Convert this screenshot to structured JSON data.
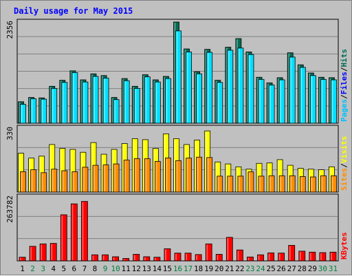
{
  "chart_data": {
    "title": "Daily usage for May 2015",
    "type": "bar",
    "days": [
      "1",
      "2",
      "3",
      "4",
      "5",
      "6",
      "7",
      "8",
      "9",
      "10",
      "11",
      "12",
      "13",
      "14",
      "15",
      "16",
      "17",
      "18",
      "19",
      "20",
      "21",
      "22",
      "23",
      "24",
      "25",
      "26",
      "27",
      "28",
      "29",
      "30",
      "31"
    ],
    "weekend_days": [
      "2",
      "3",
      "9",
      "10",
      "16",
      "17",
      "23",
      "24",
      "30",
      "31"
    ],
    "colors": {
      "hits": "#006b54",
      "files": "#00e0ff",
      "pages": "#00c0ff",
      "visits": "#ffff00",
      "sites": "#ff8c00",
      "kbytes": "#ff0000",
      "weekday_label": "#000000",
      "weekend_label": "#008040",
      "title": "#0000ff"
    },
    "panels": [
      {
        "id": "hits-files-pages",
        "ymax_label": "2356",
        "ymax": 2356,
        "legend": [
          {
            "text": "Hits",
            "color": "#006b54"
          },
          {
            "text": "Files",
            "color": "#0000ff"
          },
          {
            "text": "Pages",
            "color": "#00c0ff"
          }
        ],
        "series": [
          {
            "name": "Hits",
            "color": "#006b54",
            "values": [
              500,
              600,
              590,
              860,
              1000,
              1220,
              1010,
              1150,
              1110,
              600,
              1040,
              860,
              1130,
              1010,
              1090,
              2356,
              1730,
              1200,
              1720,
              1000,
              1770,
              1970,
              1660,
              1070,
              940,
              1060,
              1640,
              1360,
              1170,
              1070,
              1060
            ]
          },
          {
            "name": "Files",
            "color": "#00e0ff",
            "values": [
              440,
              570,
              560,
              810,
              950,
              1180,
              960,
              1090,
              1050,
              550,
              990,
              810,
              1080,
              960,
              1040,
              2150,
              1660,
              1150,
              1650,
              950,
              1700,
              1750,
              1600,
              1020,
              890,
              1010,
              1540,
              1300,
              1110,
              1020,
              1010
            ]
          }
        ]
      },
      {
        "id": "visits-sites",
        "ymax_label": "330",
        "ymax": 330,
        "legend": [
          {
            "text": "Visits",
            "color": "#ffff00"
          },
          {
            "text": "Sites",
            "color": "#ff8c00"
          }
        ],
        "series": [
          {
            "name": "Visits",
            "color": "#ffff00",
            "values": [
              200,
              175,
              185,
              245,
              225,
              220,
              205,
              255,
              195,
              220,
              250,
              275,
              270,
              225,
              300,
              275,
              245,
              268,
              315,
              155,
              145,
              130,
              118,
              148,
              150,
              167,
              138,
              122,
              118,
              115,
              130
            ]
          },
          {
            "name": "Sites",
            "color": "#ff8c00",
            "values": [
              105,
              115,
              100,
              118,
              110,
              105,
              128,
              138,
              140,
              145,
              165,
              172,
              172,
              158,
              176,
              162,
              175,
              180,
              178,
              82,
              82,
              82,
              104,
              82,
              84,
              84,
              84,
              80,
              78,
              84,
              84
            ]
          }
        ]
      },
      {
        "id": "kbytes",
        "ymax_label": "263782",
        "ymax": 263782,
        "legend": [
          {
            "text": "KBytes",
            "color": "#ff0000"
          }
        ],
        "series": [
          {
            "name": "KBytes",
            "color": "#ff0000",
            "values": [
              15000,
              60000,
              70000,
              72000,
              190000,
              235000,
              245000,
              25000,
              25000,
              17000,
              10000,
              27000,
              17000,
              15000,
              50000,
              32000,
              32000,
              26000,
              70000,
              27000,
              97000,
              45000,
              16000,
              25000,
              33000,
              32000,
              64000,
              40000,
              36000,
              34000,
              36000
            ]
          }
        ]
      }
    ]
  }
}
